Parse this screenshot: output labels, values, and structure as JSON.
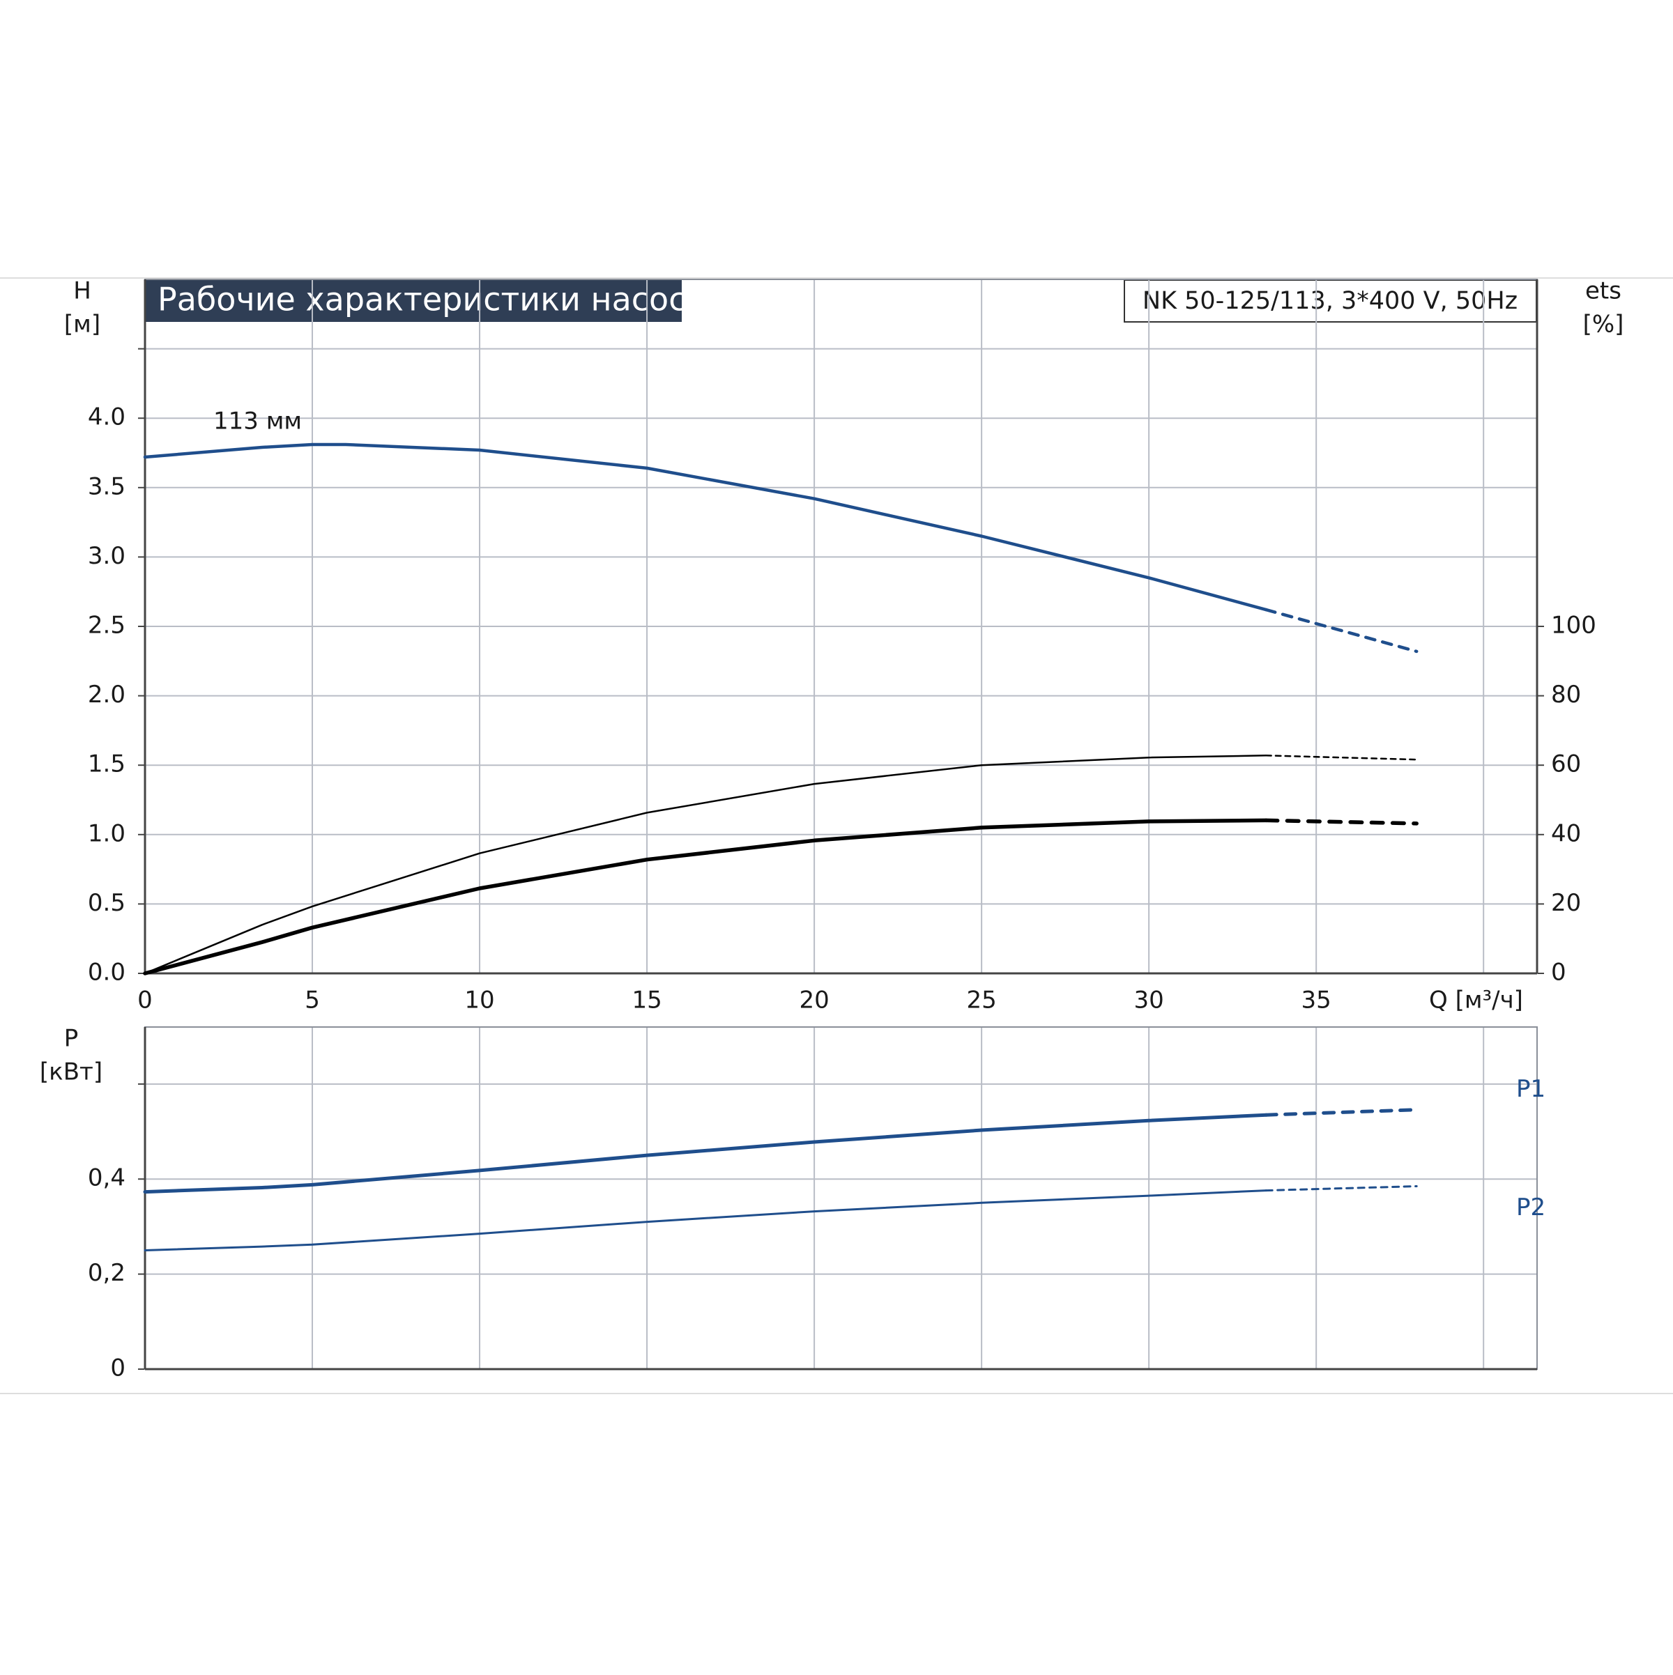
{
  "chart_data": [
    {
      "type": "line",
      "title": "Рабочие характеристики насоса",
      "model": "NK 50-125/113, 3*400 V, 50Hz",
      "y_label": [
        "H",
        "[м]"
      ],
      "y2_label": [
        "ets",
        "[%]"
      ],
      "x_label": "Q [м³/ч]",
      "xlim": [
        0,
        41.6
      ],
      "xticks": [
        0,
        5,
        10,
        15,
        20,
        25,
        30,
        35,
        {
          "value": 40,
          "label": null
        }
      ],
      "ylim": [
        0,
        5.0
      ],
      "yticks": [
        {
          "value": 0,
          "label": "0.0"
        },
        {
          "value": 0.5,
          "label": "0.5"
        },
        {
          "value": 1.0,
          "label": "1.0"
        },
        {
          "value": 1.5,
          "label": "1.5"
        },
        {
          "value": 2.0,
          "label": "2.0"
        },
        {
          "value": 2.5,
          "label": "2.5"
        },
        {
          "value": 3.0,
          "label": "3.0"
        },
        {
          "value": 3.5,
          "label": "3.5"
        },
        {
          "value": 4.0,
          "label": "4.0"
        },
        {
          "value": 4.5,
          "label": null
        }
      ],
      "y2lim": [
        0,
        200
      ],
      "y2ticks": [
        0,
        20,
        40,
        60,
        80,
        100
      ],
      "grid": true,
      "series_label": "start",
      "series": [
        {
          "name": "113 мм",
          "color": "#1f4e8c",
          "width": 4.5,
          "dashed_from": 33.5,
          "x": [
            0,
            3.5,
            5,
            6,
            10,
            15,
            20,
            25,
            30,
            33.5,
            35,
            38
          ],
          "values": [
            3.72,
            3.79,
            3.81,
            3.81,
            3.77,
            3.64,
            3.42,
            3.15,
            2.85,
            2.62,
            2.52,
            2.32
          ]
        },
        {
          "color": "#000000",
          "width": 2.5,
          "axis": "y2",
          "dashed_from": 33.5,
          "x": [
            0,
            3.5,
            5,
            10,
            15,
            20,
            25,
            30,
            33.5,
            38
          ],
          "values": [
            0,
            14,
            19.3,
            34.6,
            46.3,
            54.6,
            60,
            62.2,
            62.8,
            61.6
          ]
        },
        {
          "color": "#000000",
          "width": 5.5,
          "axis": "y2",
          "dashed_from": 33.5,
          "x": [
            0,
            3.5,
            5,
            10,
            15,
            20,
            25,
            30,
            33.5,
            38
          ],
          "values": [
            0,
            9,
            13.2,
            24.5,
            32.8,
            38.3,
            42,
            43.8,
            44.1,
            43.2
          ]
        }
      ]
    },
    {
      "type": "line",
      "y_label": [
        "P",
        "[кВт]"
      ],
      "xlim": [
        0,
        41.6
      ],
      "xticks": [
        {
          "value": 0,
          "label": null
        },
        {
          "value": 5,
          "label": null
        },
        {
          "value": 10,
          "label": null
        },
        {
          "value": 15,
          "label": null
        },
        {
          "value": 20,
          "label": null
        },
        {
          "value": 25,
          "label": null
        },
        {
          "value": 30,
          "label": null
        },
        {
          "value": 35,
          "label": null
        },
        {
          "value": 40,
          "label": null
        }
      ],
      "ylim": [
        0,
        0.72
      ],
      "yticks": [
        0,
        {
          "value": 0.2,
          "label": "0,2"
        },
        {
          "value": 0.4,
          "label": "0,4"
        },
        {
          "value": 0.6,
          "label": null
        }
      ],
      "grid": true,
      "series_label": "end",
      "series": [
        {
          "name": "P1",
          "color": "#1f4e8c",
          "width": 5,
          "dashed_from": 33.5,
          "x": [
            0,
            3.5,
            5,
            10,
            15,
            20,
            25,
            30,
            33.5,
            38
          ],
          "values": [
            0.373,
            0.382,
            0.388,
            0.418,
            0.45,
            0.478,
            0.503,
            0.523,
            0.535,
            0.546
          ]
        },
        {
          "name": "P2",
          "color": "#1f4e8c",
          "width": 3,
          "dashed_from": 33.5,
          "x": [
            0,
            3.5,
            5,
            10,
            15,
            20,
            25,
            30,
            33.5,
            38
          ],
          "values": [
            0.25,
            0.258,
            0.262,
            0.285,
            0.31,
            0.332,
            0.35,
            0.365,
            0.376,
            0.385
          ]
        }
      ]
    }
  ]
}
